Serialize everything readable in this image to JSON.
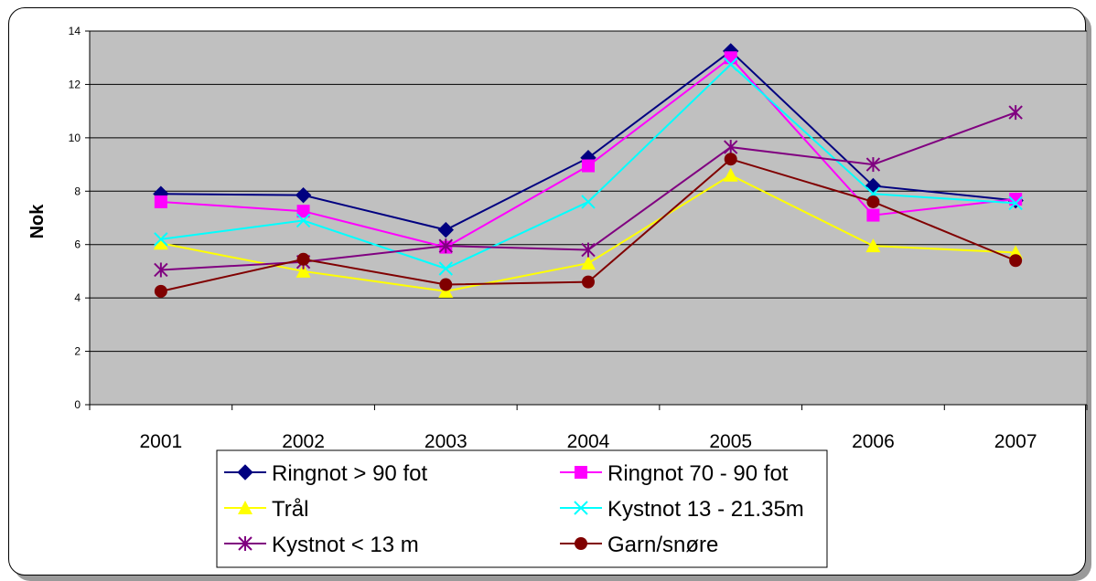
{
  "chart_data": {
    "type": "line",
    "title": "",
    "xlabel": "",
    "ylabel": "Nok",
    "categories": [
      "2001",
      "2002",
      "2003",
      "2004",
      "2005",
      "2006",
      "2007"
    ],
    "ylim": [
      0,
      14
    ],
    "yticks": [
      0,
      2,
      4,
      6,
      8,
      10,
      12,
      14
    ],
    "grid": true,
    "plot_background": "#c0c0c0",
    "legend_position": "bottom",
    "series": [
      {
        "name": "Ringnot > 90 fot",
        "color": "#000080",
        "marker": "diamond",
        "values": [
          7.9,
          7.85,
          6.55,
          9.25,
          13.25,
          8.2,
          7.65
        ]
      },
      {
        "name": "Ringnot 70 - 90 fot",
        "color": "#ff00ff",
        "marker": "square",
        "values": [
          7.6,
          7.25,
          5.9,
          8.95,
          13.0,
          7.1,
          7.7
        ]
      },
      {
        "name": "Trål",
        "color": "#ffff00",
        "marker": "triangle",
        "values": [
          6.05,
          5.0,
          4.25,
          5.3,
          8.6,
          5.95,
          5.7
        ]
      },
      {
        "name": "Kystnot 13 - 21.35m",
        "color": "#00ffff",
        "marker": "x",
        "values": [
          6.2,
          6.9,
          5.1,
          7.6,
          12.75,
          7.9,
          7.55
        ]
      },
      {
        "name": "Kystnot < 13 m",
        "color": "#800080",
        "marker": "star",
        "values": [
          5.05,
          5.35,
          5.95,
          5.8,
          9.65,
          9.0,
          10.95
        ]
      },
      {
        "name": "Garn/snøre",
        "color": "#800000",
        "marker": "circle",
        "values": [
          4.25,
          5.45,
          4.5,
          4.6,
          9.2,
          7.6,
          5.4
        ]
      }
    ]
  }
}
